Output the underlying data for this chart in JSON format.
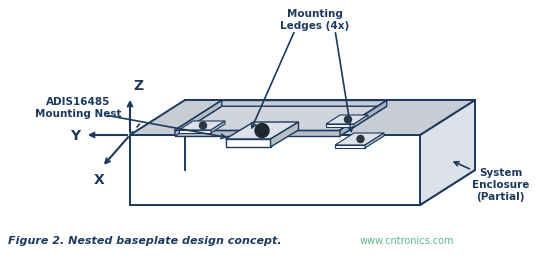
{
  "bg_color": "#ffffff",
  "dark_blue": "#1b3a5e",
  "gray_fill": "#c8cdd4",
  "light_gray": "#dde2e8",
  "mid_gray": "#b8bec6",
  "green_text": "#5ab88a",
  "figure_caption": "Figure 2. Nested baseplate design concept.",
  "watermark": "www.cntronics.com",
  "label_adis": "ADIS16485\nMounting Nest",
  "label_ledges": "Mounting\nLedges (4x)",
  "label_system": "System\nEnclosure\n(Partial)",
  "axis_x": "X",
  "axis_y": "Y",
  "axis_z": "Z"
}
